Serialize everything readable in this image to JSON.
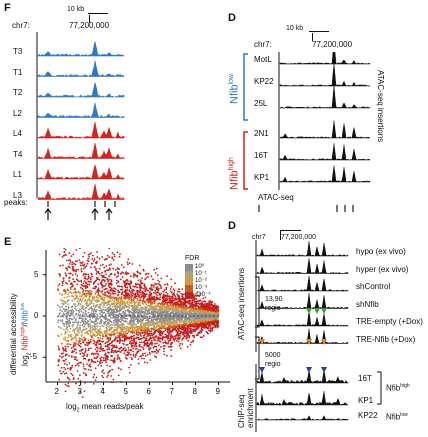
{
  "colors": {
    "blue": "#2f79c9",
    "red": "#d32420",
    "orange": "#e0872b",
    "green": "#3f9a3a",
    "navy": "#2742a0"
  },
  "panelF": {
    "label": "F",
    "scale": "10 kb",
    "chr": "chr7:",
    "coord": "77,200,000",
    "tracks": [
      {
        "name": "T3",
        "group": "low"
      },
      {
        "name": "T1",
        "group": "low"
      },
      {
        "name": "T2",
        "group": "low"
      },
      {
        "name": "L2",
        "group": "low"
      },
      {
        "name": "L4",
        "group": "high"
      },
      {
        "name": "T4",
        "group": "high"
      },
      {
        "name": "L1",
        "group": "high"
      },
      {
        "name": "L3",
        "group": "high"
      }
    ],
    "peaks_label": "peaks:"
  },
  "panelDtop": {
    "label": "D",
    "scale": "10 kb",
    "chr": "chr7:",
    "coord": "77,200,000",
    "group_low": "Nfib",
    "group_low_sup": "low",
    "group_high": "Nfib",
    "group_high_sup": "high",
    "tracks": [
      "MotL",
      "KP22",
      "25L",
      "2N1",
      "16T",
      "KP1"
    ],
    "side_label": "ATAC-seq insertions",
    "bottom_label": "ATAC-seq"
  },
  "panelE": {
    "label": "E",
    "ylabel1": "differential accessibility",
    "ylabel2_pre": "log",
    "ylabel2_sub": "2",
    "ylabel2_high": "Nfib",
    "ylabel2_high_sup": "high",
    "ylabel2_sep": "/",
    "ylabel2_low": "Nfib",
    "ylabel2_low_sup": "low",
    "xlabel_pre": "log",
    "xlabel_sub": "2",
    "xlabel_post": " mean reads/peak",
    "xticks": [
      "2",
      "3",
      "4",
      "5",
      "6",
      "7",
      "8",
      "9"
    ],
    "yticks": [
      "5",
      "0",
      "-5"
    ],
    "legend_title": "FDR",
    "legend": [
      "10⁰",
      "10⁻¹",
      "10⁻²",
      "10⁻³",
      "≤10⁻⁴"
    ],
    "region_up_count": "13,90",
    "region_up_word": "regio",
    "region_down_count": "5000",
    "region_down_word": "regio"
  },
  "panelDbot": {
    "label": "D",
    "chr": "chr7",
    "coord": "77,200,000",
    "tracks": [
      "hypo (ex vivo)",
      "hyper (ex vivo)",
      "shControl",
      "shNfib",
      "TRE-empty (+Dox)",
      "TRE-Nfib (+Dox)"
    ],
    "chip_tracks": [
      "16T",
      "KP1"
    ],
    "chip_group": "Nfib",
    "chip_group_sup": "high",
    "chip_low_track": "KP22",
    "chip_low_group": "Nfib",
    "chip_low_sup": "low",
    "atac_side": "ATAC-seq insertions",
    "chip_side1": "ChIP-seq",
    "chip_side2": "enrichment"
  },
  "chart_data": {
    "type": "scatter",
    "title": "",
    "xlabel": "log2 mean reads/peak",
    "ylabel": "differential accessibility log2 Nfib-high/Nfib-low",
    "xlim": [
      1.5,
      9.5
    ],
    "ylim": [
      -8,
      8
    ],
    "series": [
      {
        "name": "10⁰",
        "color": "#8c8c8c"
      },
      {
        "name": "10⁻¹",
        "color": "#b1a27a"
      },
      {
        "name": "10⁻²",
        "color": "#d49a3d"
      },
      {
        "name": "10⁻³",
        "color": "#cc5a24"
      },
      {
        "name": "≤10⁻⁴",
        "color": "#c81e1e"
      }
    ]
  }
}
